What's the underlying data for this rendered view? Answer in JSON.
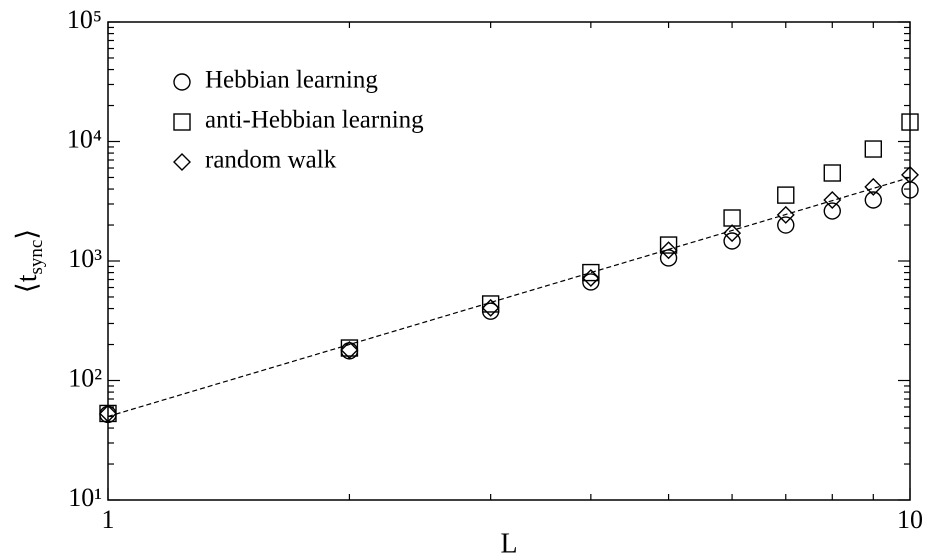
{
  "chart_data": {
    "type": "scatter",
    "xlabel": "L",
    "ylabel": [
      "⟨t",
      "sync",
      "⟩"
    ],
    "xscale": "log",
    "yscale": "log",
    "xlim": [
      1,
      10
    ],
    "ylim": [
      10,
      100000
    ],
    "xticks": [
      1,
      10
    ],
    "xminor": [
      2,
      3,
      4,
      5,
      6,
      7,
      8,
      9
    ],
    "yticks": [
      {
        "value": 10,
        "label": "10¹"
      },
      {
        "value": 100,
        "label": "10²"
      },
      {
        "value": 1000,
        "label": "10³"
      },
      {
        "value": 10000,
        "label": "10⁴"
      },
      {
        "value": 100000,
        "label": "10⁵"
      }
    ],
    "yminor": [
      20,
      30,
      40,
      50,
      60,
      70,
      80,
      90,
      200,
      300,
      400,
      500,
      600,
      700,
      800,
      900,
      2000,
      3000,
      4000,
      5000,
      6000,
      7000,
      8000,
      9000,
      20000,
      30000,
      40000,
      50000,
      60000,
      70000,
      80000,
      90000
    ],
    "legend": "upper left",
    "x": [
      1,
      2,
      3,
      4,
      5,
      6,
      7,
      8,
      9,
      10
    ],
    "series": [
      {
        "name": "Hebbian learning",
        "marker": "circle",
        "color": "#000000",
        "values": [
          52,
          177,
          380,
          668,
          1060,
          1470,
          2000,
          2620,
          3240,
          3930
        ]
      },
      {
        "name": "anti-Hebbian learning",
        "marker": "square",
        "color": "#000000",
        "values": [
          53,
          187,
          437,
          800,
          1360,
          2290,
          3560,
          5450,
          8650,
          14550
        ]
      },
      {
        "name": "random walk",
        "marker": "diamond",
        "color": "#000000",
        "values": [
          53,
          180,
          405,
          720,
          1230,
          1710,
          2430,
          3240,
          4170,
          5260
        ]
      }
    ],
    "fit": {
      "x": [
        1,
        10
      ],
      "values": [
        50,
        5000
      ],
      "color": "#000000",
      "dashed": true
    }
  }
}
